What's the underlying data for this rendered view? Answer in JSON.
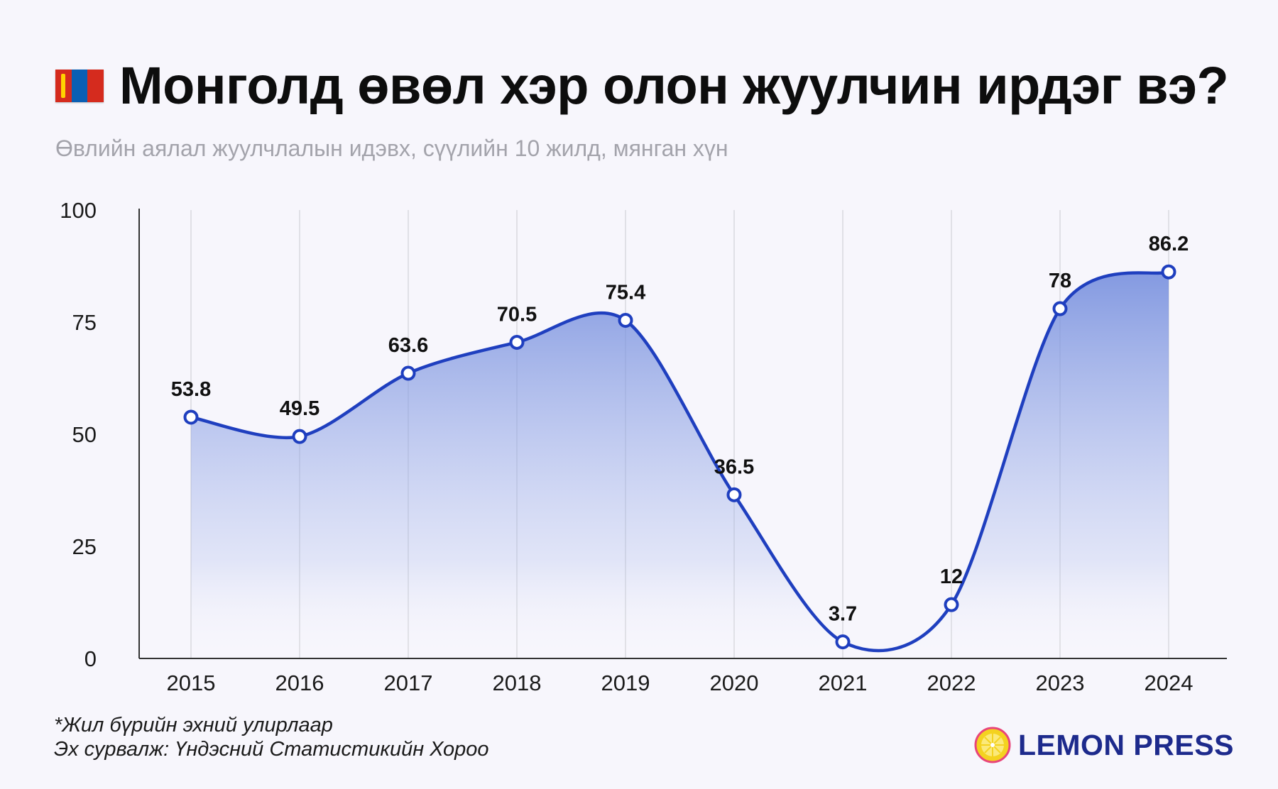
{
  "header": {
    "flag_icon": "mongolia-flag-icon",
    "title": "Монголд өвөл хэр олон жуулчин ирдэг вэ?",
    "subtitle": "Өвлийн аялал жуулчлалын идэвх, сүүлийн 10 жилд, мянган хүн"
  },
  "chart_data": {
    "type": "area",
    "categories": [
      "2015",
      "2016",
      "2017",
      "2018",
      "2019",
      "2020",
      "2021",
      "2022",
      "2023",
      "2024"
    ],
    "values": [
      53.8,
      49.5,
      63.6,
      70.5,
      75.4,
      36.5,
      3.7,
      12,
      78,
      86.2
    ],
    "data_labels": [
      "53.8",
      "49.5",
      "63.6",
      "70.5",
      "75.4",
      "36.5",
      "3.7",
      "12",
      "78",
      "86.2"
    ],
    "ylim": [
      0,
      100
    ],
    "yticks": [
      0,
      25,
      50,
      75,
      100
    ],
    "ytick_labels": [
      "0",
      "25",
      "50",
      "75",
      "100"
    ],
    "grid": "vertical",
    "colors": {
      "line": "#1f3fbf",
      "fill_top": "#7b93df",
      "marker_fill": "#ffffff"
    }
  },
  "footer": {
    "note": "*Жил бүрийн эхний улирлаар",
    "source": "Эх сурвалж: Үндэсний Статистикийн Хороо",
    "brand": "LEMON PRESS",
    "brand_icon": "lemon-icon",
    "brand_color": "#1d2a8c"
  }
}
